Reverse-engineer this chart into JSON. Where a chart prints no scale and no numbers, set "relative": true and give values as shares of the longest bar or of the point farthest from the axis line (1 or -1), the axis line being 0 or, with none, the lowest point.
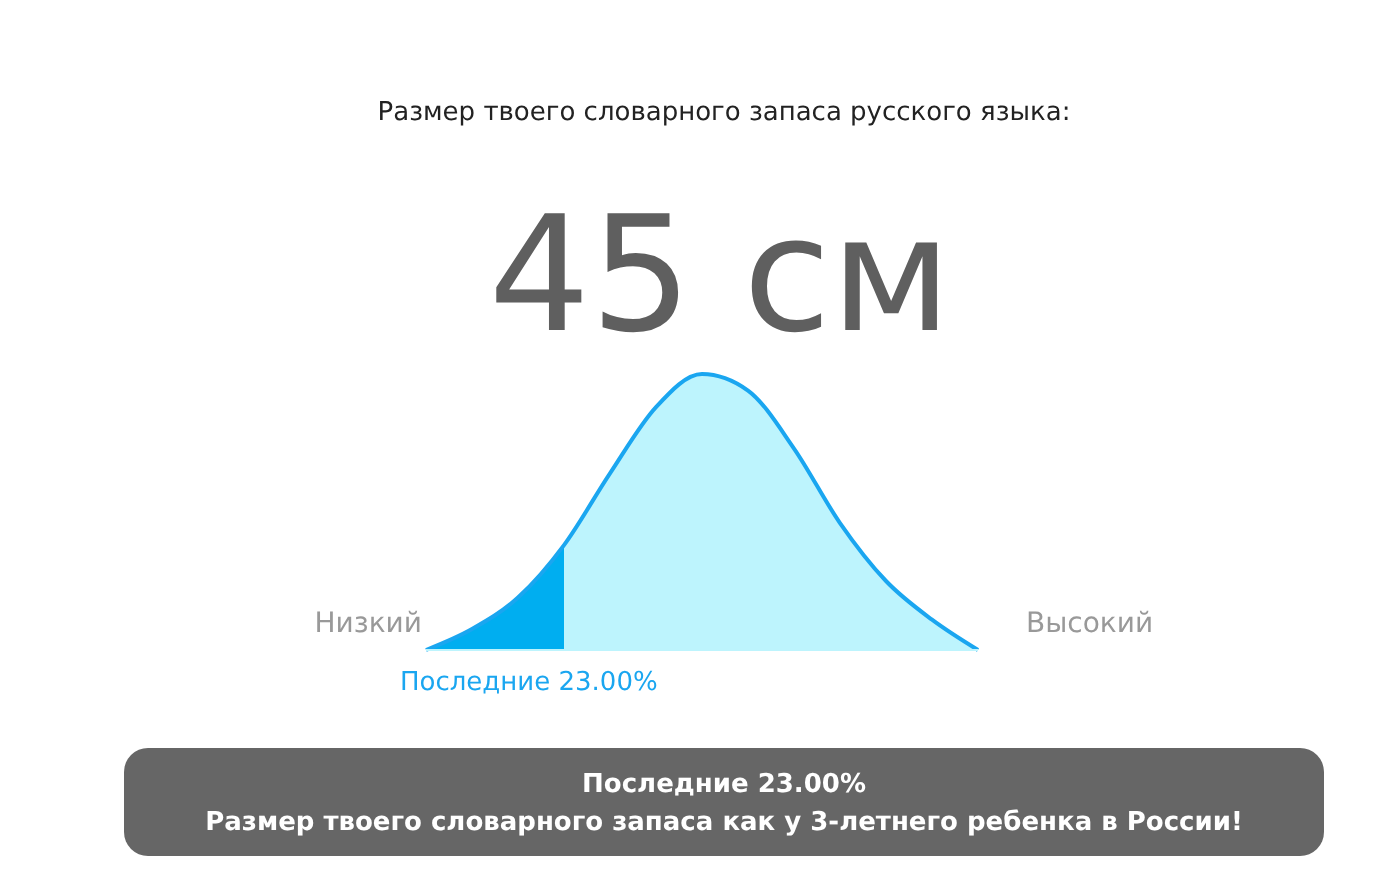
{
  "chart_data": {
    "type": "area",
    "relative": true,
    "title": "Размер твоего словарного запаса русского языка:",
    "subtitle": "45 см",
    "categories": [
      null,
      null,
      null,
      null,
      null,
      null,
      null,
      null,
      null,
      null,
      null,
      null,
      null
    ],
    "series": [
      {
        "color": "#00aef0",
        "values": [
          0,
          0.076,
          0.19,
          0.38,
          null,
          null,
          null,
          null,
          null,
          null,
          null,
          null,
          null
        ]
      },
      {
        "color": "#bdf4fd",
        "values": [
          null,
          null,
          null,
          0.38,
          0.64,
          0.88,
          1.0,
          0.94,
          0.73,
          0.46,
          0.25,
          0.11,
          0
        ]
      },
      {
        "type": "line",
        "color": "#1aa6f0",
        "values": [
          0,
          0.076,
          0.19,
          0.38,
          0.64,
          0.88,
          1.0,
          0.94,
          0.73,
          0.46,
          0.25,
          0.11,
          0
        ]
      }
    ],
    "annotations": [
      "Низкий",
      "Высокий",
      "Последние 23.00%",
      "Последние 23.00%",
      "Размер твоего словарного запаса как у 3-летнего ребенка в России!"
    ]
  }
}
